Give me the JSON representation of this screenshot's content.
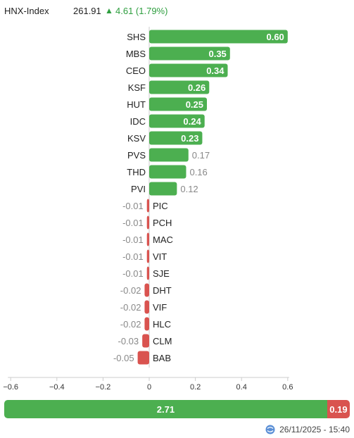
{
  "header": {
    "index_name": "HNX-Index",
    "index_value": "261.91",
    "change_arrow": "▲",
    "change_text": "4.61 (1.79%)"
  },
  "chart_data": {
    "type": "bar",
    "orientation": "horizontal",
    "categories": [
      "SHS",
      "MBS",
      "CEO",
      "KSF",
      "HUT",
      "IDC",
      "KSV",
      "PVS",
      "THD",
      "PVI",
      "PIC",
      "PCH",
      "MAC",
      "VIT",
      "SJE",
      "DHT",
      "VIF",
      "HLC",
      "CLM",
      "BAB"
    ],
    "values": [
      0.6,
      0.35,
      0.34,
      0.26,
      0.25,
      0.24,
      0.23,
      0.17,
      0.16,
      0.12,
      -0.01,
      -0.01,
      -0.01,
      -0.01,
      -0.01,
      -0.02,
      -0.02,
      -0.02,
      -0.03,
      -0.05
    ],
    "value_labels": [
      "0.60",
      "0.35",
      "0.34",
      "0.26",
      "0.25",
      "0.24",
      "0.23",
      "0.17",
      "0.16",
      "0.12",
      "-0.01",
      "-0.01",
      "-0.01",
      "-0.01",
      "-0.01",
      "-0.02",
      "-0.02",
      "-0.02",
      "-0.03",
      "-0.05"
    ],
    "xlim": [
      -0.6,
      0.6
    ],
    "xticks": [
      -0.6,
      -0.4,
      -0.2,
      0,
      0.2,
      0.4,
      0.6
    ],
    "xtick_labels": [
      "−0.6",
      "−0.4",
      "−0.2",
      "0",
      "0.2",
      "0.4",
      "0.6"
    ],
    "positive_color": "#4caf50",
    "negative_color": "#d9534f",
    "grid": false
  },
  "summary": {
    "up_value": 2.71,
    "down_value": 0.19,
    "up_label": "2.71",
    "down_label": "0.19",
    "up_color": "#4caf50",
    "down_color": "#d9534f"
  },
  "footer": {
    "icon": "refresh-globe-icon",
    "timestamp": "26/11/2025 - 15:40"
  }
}
